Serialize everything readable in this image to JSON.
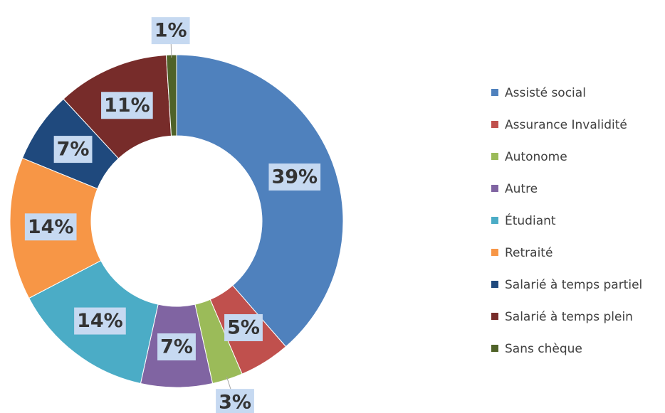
{
  "chart_data": {
    "type": "donut",
    "categories": [
      "Assisté social",
      "Assurance Invalidité",
      "Autonome",
      "Autre",
      "Étudiant",
      "Retraité",
      "Salarié à temps partiel",
      "Salarié à temps plein",
      "Sans chèque"
    ],
    "values": [
      39,
      5,
      3,
      7,
      14,
      14,
      7,
      11,
      1
    ],
    "value_labels": [
      "39%",
      "5%",
      "3%",
      "7%",
      "14%",
      "14%",
      "7%",
      "11%",
      "1%"
    ],
    "colors": [
      "#4f81bd",
      "#c0504d",
      "#9bbb59",
      "#8064a2",
      "#4bacc6",
      "#f79646",
      "#1f497d",
      "#772c2a",
      "#4f6228"
    ],
    "legend": "right"
  }
}
